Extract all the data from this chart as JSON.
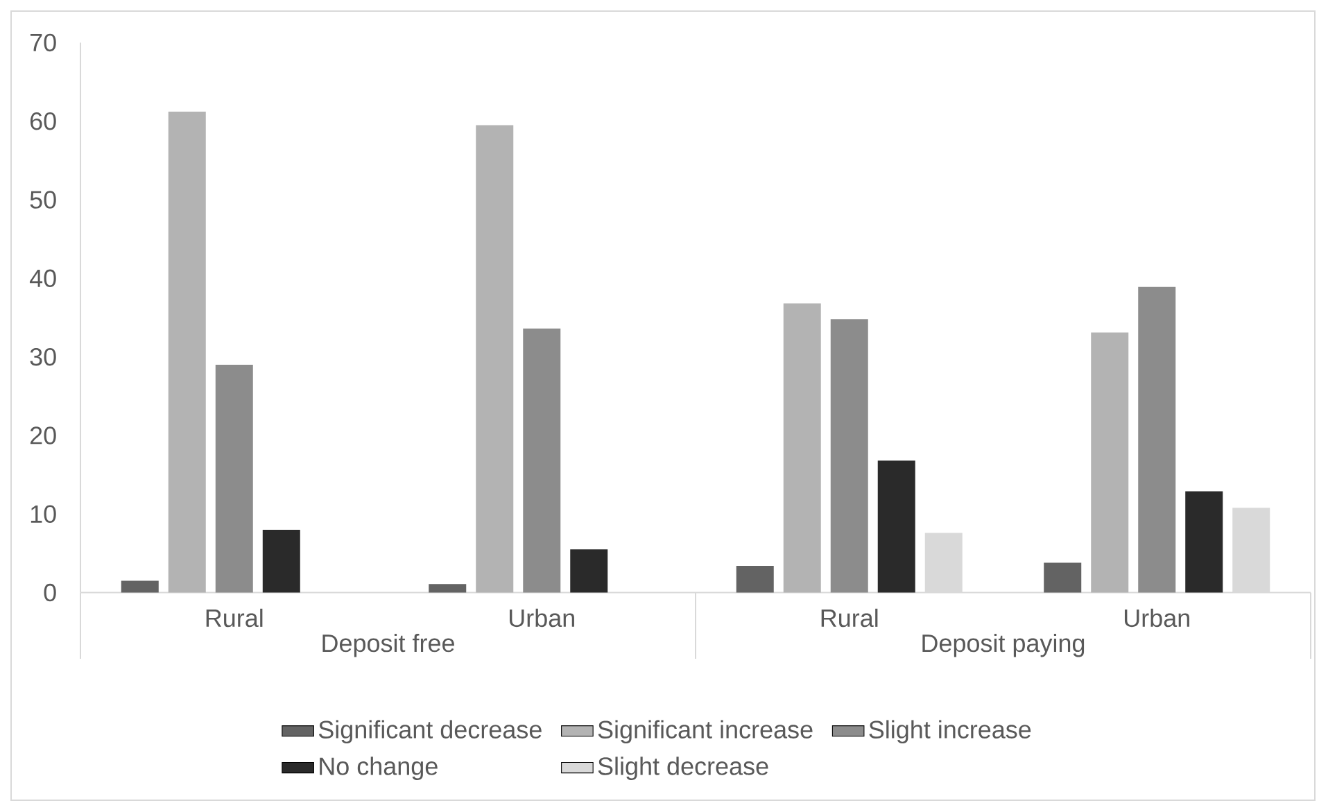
{
  "chart_data": {
    "type": "bar",
    "categories": [
      "Rural",
      "Urban",
      "Rural",
      "Urban"
    ],
    "series": [
      {
        "name": "Significant decrease",
        "color": "#636363",
        "values": [
          1.5,
          1.1,
          3.4,
          3.8
        ]
      },
      {
        "name": "Significant increase",
        "color": "#b3b3b3",
        "values": [
          61.2,
          59.5,
          36.8,
          33.1
        ]
      },
      {
        "name": "Slight increase",
        "color": "#8c8c8c",
        "values": [
          29.0,
          33.6,
          34.8,
          38.9
        ]
      },
      {
        "name": "No change",
        "color": "#2a2a2a",
        "values": [
          8.0,
          5.5,
          16.8,
          12.9
        ]
      },
      {
        "name": "Slight decrease",
        "color": "#d9d9d9",
        "values": [
          null,
          null,
          7.6,
          10.8
        ]
      }
    ],
    "annotations": [
      "Deposit free",
      "Deposit paying"
    ],
    "ylim": [
      0,
      70
    ],
    "yticks": [
      0,
      10,
      20,
      30,
      40,
      50,
      60,
      70
    ],
    "grid": false,
    "legend": "bottom"
  }
}
